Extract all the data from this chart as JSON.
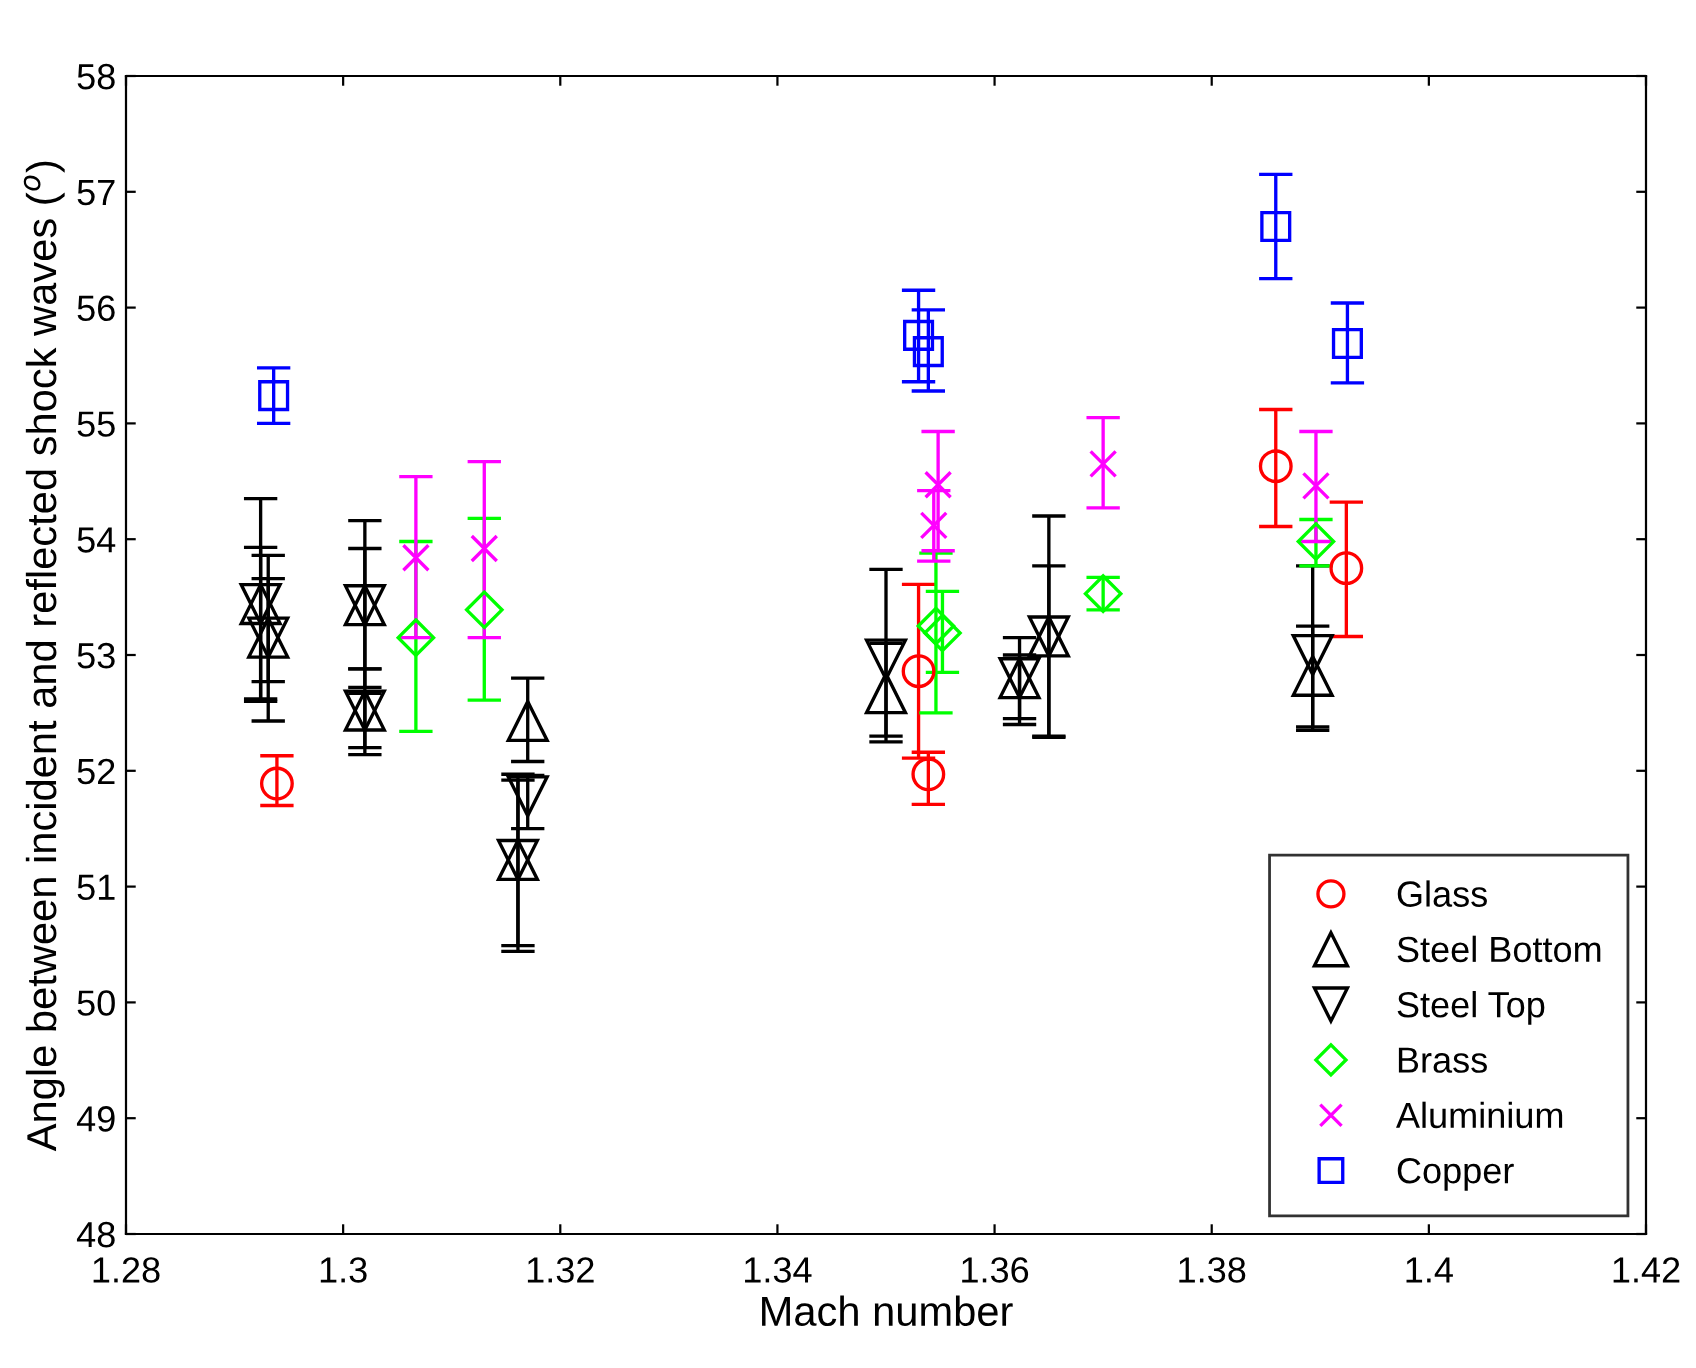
{
  "chart_data": {
    "type": "scatter",
    "xlabel": "Mach number",
    "ylabel": "Angle between incident and reflected shock waves ($^{o}$)",
    "xlim": [
      1.28,
      1.42
    ],
    "xticks": [
      1.28,
      1.3,
      1.32,
      1.34,
      1.36,
      1.38,
      1.4,
      1.42
    ],
    "ylim": [
      48,
      58
    ],
    "yticks": [
      48,
      49,
      50,
      51,
      52,
      53,
      54,
      55,
      56,
      57,
      58
    ],
    "grid": false,
    "legend": "bottom right",
    "series": [
      {
        "name": "Glass",
        "color": "#ff0000",
        "marker": "circle",
        "x": [
          1.2939,
          1.353,
          1.3539,
          1.3859,
          1.3924
        ],
        "values": [
          51.89,
          52.86,
          51.97,
          54.63,
          53.75
        ],
        "errors": [
          [
            51.7,
            52.13
          ],
          [
            52.11,
            53.61
          ],
          [
            51.71,
            52.16
          ],
          [
            54.11,
            55.12
          ],
          [
            53.16,
            54.32
          ]
        ]
      },
      {
        "name": "Steel Bottom",
        "color": "#000000",
        "marker": "triangle",
        "x": [
          1.2924,
          1.2931,
          1.302,
          1.302,
          1.317,
          1.3161,
          1.35,
          1.3623,
          1.365,
          1.3893
        ],
        "values": [
          53.44,
          53.15,
          53.43,
          52.52,
          52.43,
          51.23,
          52.67,
          52.8,
          53.16,
          52.82
        ],
        "errors": [
          [
            52.62,
            53.93
          ],
          [
            52.77,
            53.86
          ],
          [
            52.88,
            53.92
          ],
          [
            52.14,
            52.88
          ],
          [
            52.08,
            52.8
          ],
          [
            50.49,
            51.97
          ],
          [
            52.3,
            53.1
          ],
          [
            52.4,
            53.15
          ],
          [
            52.29,
            53.77
          ],
          [
            52.35,
            53.25
          ]
        ]
      },
      {
        "name": "Steel Top",
        "color": "#000000",
        "marker": "triangle_down",
        "x": [
          1.2924,
          1.2931,
          1.302,
          1.302,
          1.317,
          1.3161,
          1.35,
          1.3623,
          1.365,
          1.3893
        ],
        "values": [
          53.44,
          53.15,
          53.43,
          52.52,
          51.78,
          51.23,
          52.96,
          52.8,
          53.16,
          53.0
        ],
        "errors": [
          [
            52.6,
            54.35
          ],
          [
            52.43,
            53.66
          ],
          [
            52.72,
            54.16
          ],
          [
            52.2,
            52.67
          ],
          [
            51.5,
            51.96
          ],
          [
            50.44,
            51.92
          ],
          [
            52.25,
            53.74
          ],
          [
            52.45,
            53.0
          ],
          [
            52.3,
            54.2
          ],
          [
            52.38,
            53.77
          ]
        ]
      },
      {
        "name": "Brass",
        "color": "#00ff00",
        "marker": "diamond",
        "x": [
          1.3067,
          1.313,
          1.3546,
          1.3552,
          1.37,
          1.3896
        ],
        "values": [
          53.15,
          53.39,
          53.25,
          53.19,
          53.53,
          53.98
        ],
        "errors": [
          [
            52.34,
            53.98
          ],
          [
            52.61,
            54.18
          ],
          [
            52.5,
            53.88
          ],
          [
            52.85,
            53.55
          ],
          [
            53.39,
            53.67
          ],
          [
            53.77,
            54.17
          ]
        ]
      },
      {
        "name": "Aluminium",
        "color": "#ff00ff",
        "marker": "cross",
        "x": [
          1.3067,
          1.313,
          1.3548,
          1.3544,
          1.37,
          1.3896
        ],
        "values": [
          53.84,
          53.92,
          54.47,
          54.12,
          54.65,
          54.46
        ],
        "errors": [
          [
            53.15,
            54.54
          ],
          [
            53.15,
            54.67
          ],
          [
            53.9,
            54.93
          ],
          [
            53.81,
            54.42
          ],
          [
            54.27,
            55.05
          ],
          [
            53.98,
            54.93
          ]
        ]
      },
      {
        "name": "Copper",
        "color": "#0000ff",
        "marker": "square",
        "x": [
          1.2936,
          1.353,
          1.3539,
          1.3859,
          1.3925
        ],
        "values": [
          55.24,
          55.76,
          55.62,
          56.7,
          55.69
        ],
        "errors": [
          [
            55.0,
            55.48
          ],
          [
            55.36,
            56.15
          ],
          [
            55.28,
            55.98
          ],
          [
            56.25,
            57.15
          ],
          [
            55.35,
            56.04
          ]
        ]
      }
    ]
  }
}
